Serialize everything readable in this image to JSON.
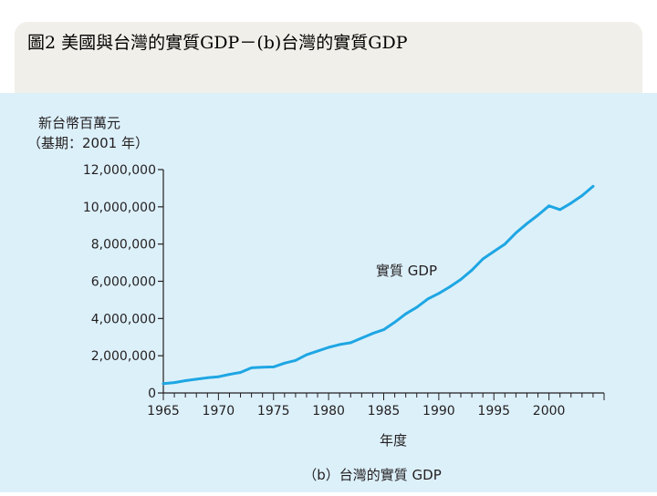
{
  "header": {
    "title": "圖2 美國與台灣的實質GDP－(b)台灣的實質GDP"
  },
  "colors": {
    "panel_bg": "#dcf0fa",
    "title_band": "#f1efe9",
    "line": "#1ea6e3",
    "axis": "#231f20"
  },
  "chart_data": {
    "type": "line",
    "ylabel_line1": "新台幣百萬元",
    "ylabel_line2": "（基期：2001 年）",
    "xlabel": "年度",
    "caption": "（b）台灣的實質 GDP",
    "series_annotation": "實質 GDP",
    "xlim": [
      1965,
      2005
    ],
    "ylim": [
      0,
      12000000
    ],
    "x_ticks": [
      "1965",
      "1970",
      "1975",
      "1980",
      "1985",
      "1990",
      "1995",
      "2000"
    ],
    "y_ticks": [
      "0",
      "2,000,000",
      "4,000,000",
      "6,000,000",
      "8,000,000",
      "10,000,000",
      "12,000,000"
    ],
    "grid": false,
    "series": [
      {
        "name": "實質 GDP",
        "x": [
          1965,
          1966,
          1967,
          1968,
          1969,
          1970,
          1971,
          1972,
          1973,
          1974,
          1975,
          1976,
          1977,
          1978,
          1979,
          1980,
          1981,
          1982,
          1983,
          1984,
          1985,
          1986,
          1987,
          1988,
          1989,
          1990,
          1991,
          1992,
          1993,
          1994,
          1995,
          1996,
          1997,
          1998,
          1999,
          2000,
          2001,
          2002,
          2003,
          2004
        ],
        "values": [
          500000,
          560000,
          660000,
          740000,
          820000,
          870000,
          1000000,
          1100000,
          1350000,
          1380000,
          1400000,
          1600000,
          1750000,
          2050000,
          2250000,
          2450000,
          2600000,
          2700000,
          2950000,
          3200000,
          3400000,
          3800000,
          4250000,
          4600000,
          5050000,
          5350000,
          5700000,
          6100000,
          6600000,
          7200000,
          7600000,
          8000000,
          8600000,
          9100000,
          9550000,
          10050000,
          9850000,
          10200000,
          10600000,
          11100000
        ]
      }
    ]
  }
}
